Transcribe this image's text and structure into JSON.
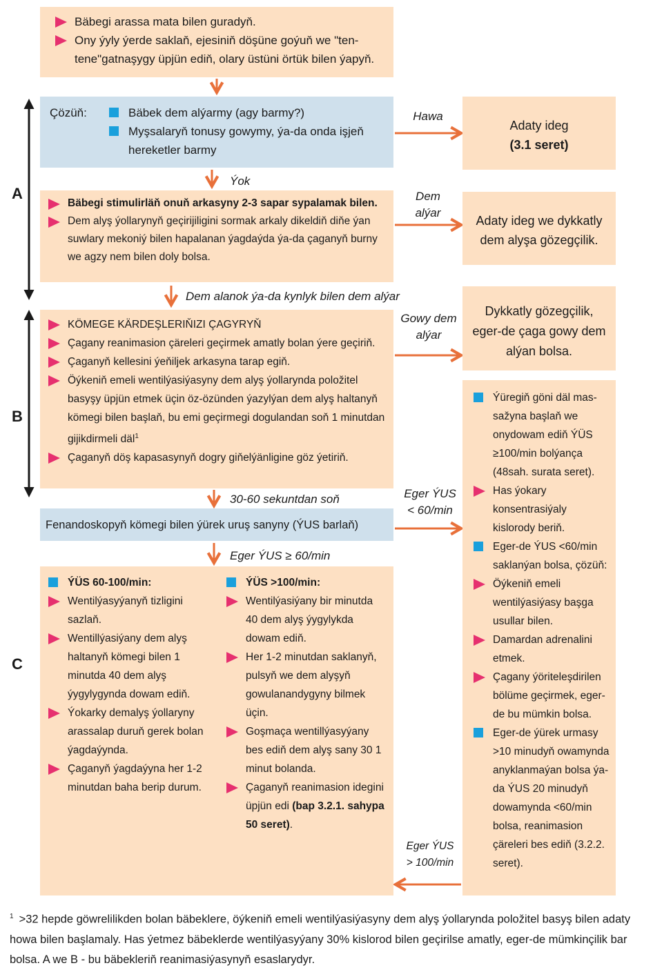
{
  "top_box": {
    "items": [
      "Bäbegi arassa mata bilen guradyň.",
      "Ony ýyly ýerde saklaň, ejesiniň döşüne goýuň we \"ten-tene\"gatnaşygy üpjün ediň, olary üstüni örtük bilen ýapyň."
    ]
  },
  "sections": {
    "a": "A",
    "b": "B",
    "c": "C"
  },
  "assess": {
    "label": "Çözüň:",
    "items": [
      "Bäbek dem alýarmy (agy barmy?)",
      "Myşsalaryň tonusy gowymy, ýa-da onda işjeň hereketler barmy"
    ]
  },
  "flow_labels": {
    "hawa": "Hawa",
    "yok": "Ýok",
    "dem_alyar": "Dem alýar",
    "dem_alanok": "Dem alanok ýa-da kynlyk bilen dem alýar",
    "gowy_dem_alyar": "Gowy dem alýar",
    "sekunt": "30-60 sekuntdan soň",
    "yus_lt60": "Eger ÝUS < 60/min",
    "yus_ge60": "Eger ÝUS ≥ 60/min",
    "yus_gt100": "Eger ÝUS > 100/min"
  },
  "routine": {
    "line1": "Adaty ideg",
    "line2": "(3.1 seret)"
  },
  "stimulate": {
    "item1": "Bäbegi stimulirläň onuň arkasyny 2-3 sapar sypalamak bilen.",
    "item2": "Dem alyş ýollarynyň geçirijiligini sormak arkaly dikeldiň diňe ýan suwlary mekoniý bilen hapalanan ýagdaýda ýa-da çaganyň burny we agzy nem bilen doly bolsa."
  },
  "observe": {
    "text": "Adaty ideg we dykkatly dem alyşa gözegçilik."
  },
  "section_b": {
    "items": [
      "KÖMEGE KÄRDEŞLERIŇIZI ÇAGYRYŇ",
      "Çagany reanimasion çäreleri geçirmek amatly bolan ýere geçiriň.",
      "Çaganyň kellesini ýeňiljek arkasyna tarap egiň.",
      "Öýkeniň emeli wentilýasiýasyny dem alyş ýollarynda položitel basyşy üpjün etmek üçin öz-özünden ýazylýan dem alyş haltanyň kömegi bilen başlaň, bu emi geçirmegi dogulandan soň 1 minutdan gijikdirmeli däl",
      "Çaganyň döş kapasasynyň dogry giňelýänligine göz ýetiriň."
    ],
    "footnote_ref": "1"
  },
  "careful": {
    "text": "Dykkatly gözegçilik, eger-de çaga gowy dem alýan bolsa."
  },
  "hr_box": {
    "text": "Fenandoskopyň kömegi bilen ýürek uruş sanyny (ÝUS barlaň)"
  },
  "hr60": {
    "title": "ÝÜS 60-100/min:",
    "items": [
      "Wentilýasyýanyň tizligini sazlaň.",
      "Wentillýasiýany dem alyş haltanyň kömegi bilen 1 minutda 40 dem alyş ýygylygynda dowam ediň.",
      "Ýokarky demalyş ýollaryny arassalap duruň gerek bolan ýagdaýynda.",
      "Çaganyň ýagdaýyna her 1-2 minutdan baha berip durum."
    ]
  },
  "hr100": {
    "title": "ÝÜS >100/min:",
    "items": [
      "Wentilýasiýany bir minutda 40 dem alyş ýygylykda dowam ediň.",
      "Her 1-2 minutdan saklanyň, pulsyň we dem alyşyň gowulanandygyny bilmek üçin.",
      "Goşmaça wentillýasyýany bes ediň dem alyş sany 30 1 minut bolanda.",
      "Çaganyň reanimasion idegini üpjün edi"
    ],
    "ref_bold": "(bap 3.2.1. sahypa 50 seret)",
    "ref_end": "."
  },
  "right_box": {
    "items": [
      {
        "kind": "square",
        "text": "Ýüregiň göni däl mas-sažyna başlaň we onydowam ediň ÝÜS ≥100/min bolýança (48sah. surata seret)."
      },
      {
        "kind": "tri",
        "text": "Has ýokary konsentrasiýaly kislorody beriň."
      },
      {
        "kind": "square",
        "text": "Eger-de ÝUS <60/min saklanýan bolsa, çözüň:"
      },
      {
        "kind": "tri",
        "text": "Öýkeniň emeli wentilýasiýasy başga usullar bilen."
      },
      {
        "kind": "tri",
        "text": "Damardan adrenalini etmek."
      },
      {
        "kind": "tri",
        "text": "Çagany ýöriteleşdirilen bölüme geçirmek, eger-de bu mümkin bolsa."
      },
      {
        "kind": "square",
        "text": "Eger-de ýürek urmasy >10 minudyň owamynda anyklanmaýan bolsa ýa-da ÝUS 20 minudyň dowamynda <60/min bolsa, reanimasion çäreleri bes ediň (3.2.2. seret)."
      }
    ]
  },
  "footnote": {
    "marker": "1",
    "text": ">32 hepde göwrelilikden bolan bäbeklere, öýkeniň emeli wentilýasiýasyny dem alyş ýollarynda položitel basyş bilen adaty howa bilen başlamaly. Has ýetmez bäbeklerde wentilýasyýany 30% kislorod bilen geçirilse amatly, eger-de mümkinçilik bar bolsa. A we B - bu bäbekleriň reanimasiýasynyň esaslarydyr."
  },
  "colors": {
    "peach": "#fde0c3",
    "blue": "#cfe0ec",
    "arrow": "#e8703a",
    "bullet_triangle": "#e6306f",
    "bullet_square": "#1aa0dc"
  }
}
